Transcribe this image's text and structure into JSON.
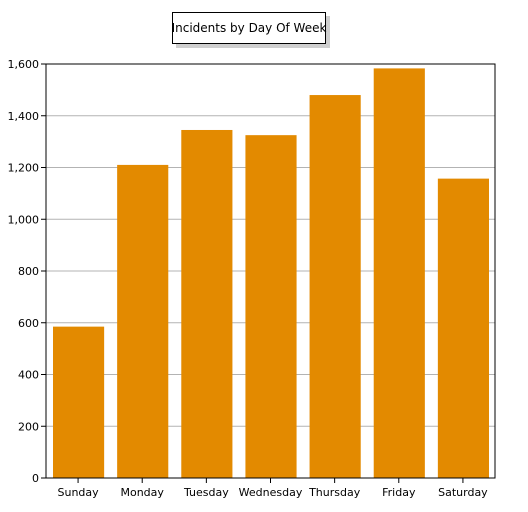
{
  "chart_data": {
    "type": "bar",
    "title": "Incidents by Day Of Week",
    "xlabel": "",
    "ylabel": "",
    "categories": [
      "Sunday",
      "Monday",
      "Tuesday",
      "Wednesday",
      "Thursday",
      "Friday",
      "Saturday"
    ],
    "values": [
      585,
      1210,
      1345,
      1325,
      1480,
      1583,
      1157
    ],
    "ylim": [
      0,
      1600
    ],
    "yticks": [
      0,
      200,
      400,
      600,
      800,
      1000,
      1200,
      1400,
      1600
    ],
    "ytick_labels": [
      "0",
      "200",
      "400",
      "600",
      "800",
      "1,000",
      "1,200",
      "1,400",
      "1,600"
    ],
    "grid": true,
    "legend": "none",
    "colors": {
      "bar": "#e38a00",
      "grid": "#b3b3b3",
      "axis": "#000000"
    }
  }
}
